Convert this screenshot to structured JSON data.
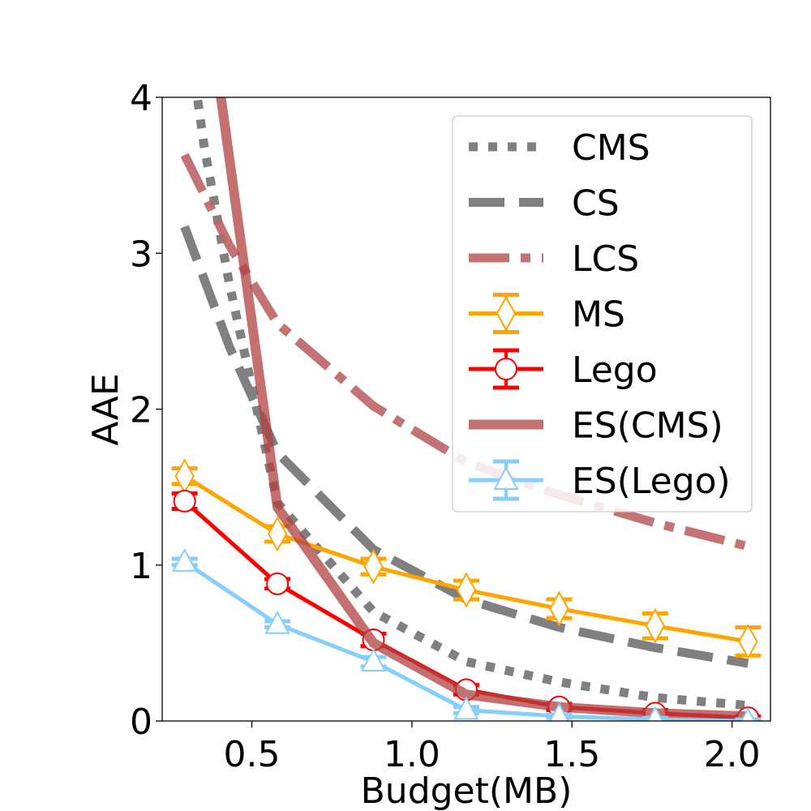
{
  "chart_data": {
    "type": "line",
    "title": "",
    "xlabel": "Budget(MB)",
    "ylabel": "AAE",
    "xlim": [
      0.22,
      2.12
    ],
    "ylim": [
      0,
      4
    ],
    "xticks": [
      0.5,
      1.0,
      1.5,
      2.0
    ],
    "xtick_labels": [
      "0.5",
      "1.0",
      "1.5",
      "2.0"
    ],
    "yticks": [
      0,
      1,
      2,
      3,
      4
    ],
    "ytick_labels": [
      "0",
      "1",
      "2",
      "3",
      "4"
    ],
    "grid": false,
    "legend": "top-right",
    "series": [
      {
        "name": "CMS",
        "color": "#808080",
        "style": "dotted",
        "x": [
          0.29,
          0.35,
          0.43,
          0.58,
          0.88,
          1.17,
          1.46,
          1.76,
          2.05
        ],
        "y": [
          4.6,
          3.7,
          2.8,
          1.4,
          0.7,
          0.38,
          0.25,
          0.15,
          0.1
        ]
      },
      {
        "name": "CS",
        "color": "#808080",
        "style": "dashed",
        "x": [
          0.29,
          0.43,
          0.58,
          0.88,
          1.17,
          1.46,
          1.76,
          2.05
        ],
        "y": [
          3.17,
          2.4,
          1.72,
          1.1,
          0.78,
          0.6,
          0.47,
          0.37
        ]
      },
      {
        "name": "LCS",
        "color": "#bc6464",
        "style": "dashdot",
        "x": [
          0.29,
          0.43,
          0.58,
          0.88,
          1.17,
          1.46,
          1.76,
          2.05
        ],
        "y": [
          3.63,
          3.05,
          2.55,
          2.02,
          1.66,
          1.45,
          1.27,
          1.12
        ]
      },
      {
        "name": "MS",
        "color": "#ffa500",
        "style": "solid",
        "marker": "diamond",
        "x": [
          0.29,
          0.58,
          0.88,
          1.17,
          1.46,
          1.76,
          2.05
        ],
        "y": [
          1.57,
          1.2,
          0.99,
          0.84,
          0.72,
          0.61,
          0.51
        ],
        "err": [
          0.05,
          0.05,
          0.05,
          0.06,
          0.06,
          0.08,
          0.09
        ]
      },
      {
        "name": "Lego",
        "color": "#ff0000",
        "style": "solid",
        "marker": "circle",
        "x": [
          0.29,
          0.58,
          0.88,
          1.17,
          1.46,
          1.76,
          2.05
        ],
        "y": [
          1.41,
          0.88,
          0.52,
          0.2,
          0.09,
          0.05,
          0.02
        ],
        "err": [
          0.05,
          0.03,
          0.04,
          0.03,
          0.02,
          0.02,
          0.01
        ]
      },
      {
        "name": "ES(CMS)",
        "color": "#b04040",
        "style": "solid",
        "x": [
          0.4,
          0.58,
          0.88,
          1.17,
          1.46,
          1.76,
          2.05
        ],
        "y": [
          4.05,
          1.37,
          0.5,
          0.17,
          0.09,
          0.05,
          0.03
        ]
      },
      {
        "name": "ES(Lego)",
        "color": "#87cefa",
        "style": "solid",
        "marker": "triangle",
        "x": [
          0.29,
          0.58,
          0.88,
          1.17,
          1.46,
          1.76,
          2.05
        ],
        "y": [
          1.02,
          0.62,
          0.38,
          0.07,
          0.03,
          0.01,
          0.0
        ],
        "err": [
          0.02,
          0.02,
          0.03,
          0.02,
          0.01,
          0.01,
          0.01
        ]
      }
    ]
  }
}
